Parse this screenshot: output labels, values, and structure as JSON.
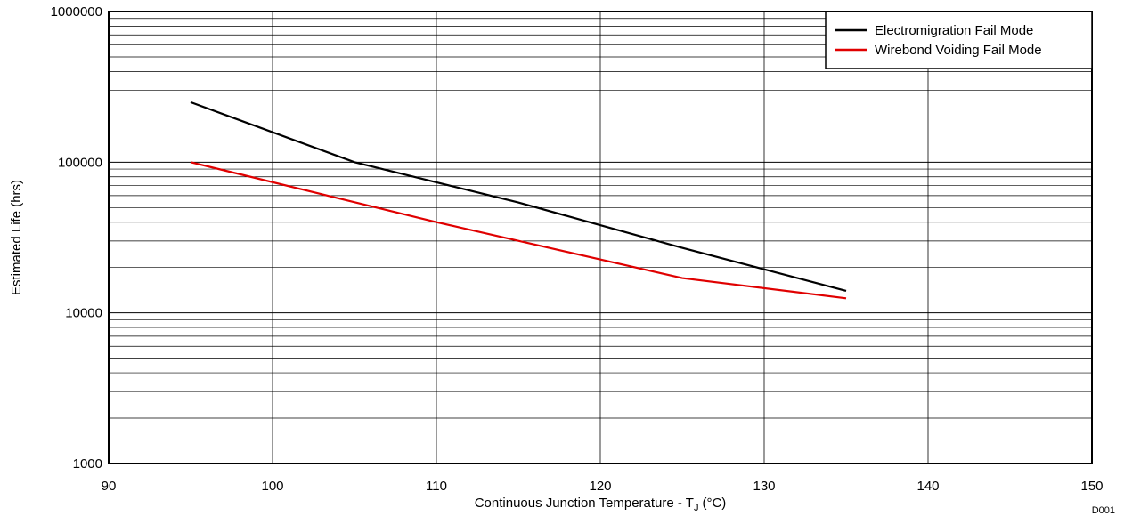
{
  "chart_data": {
    "type": "line",
    "xlabel": "Continuous Junction Temperature - T",
    "xlabel_subscript": "J",
    "xlabel_unit": "(°C)",
    "ylabel": "Estimated Life (hrs)",
    "xlim": [
      90,
      150
    ],
    "ylim": [
      1000,
      1000000
    ],
    "yscale": "log",
    "x_ticks": [
      90,
      100,
      110,
      120,
      130,
      140,
      150
    ],
    "y_ticks": [
      1000,
      10000,
      100000,
      1000000
    ],
    "x_tick_labels": [
      "90",
      "100",
      "110",
      "120",
      "130",
      "140",
      "150"
    ],
    "y_tick_labels": [
      "1000",
      "10000",
      "100000",
      "1000000"
    ],
    "grid": true,
    "legend_position": "top-right",
    "series": [
      {
        "name": "Electromigration Fail Mode",
        "color": "#000000",
        "points": [
          [
            95,
            250000
          ],
          [
            105,
            100000
          ],
          [
            115,
            54000
          ],
          [
            125,
            27000
          ],
          [
            135,
            14000
          ]
        ]
      },
      {
        "name": "Wirebond Voiding Fail Mode",
        "color": "#e00000",
        "points": [
          [
            95,
            100000
          ],
          [
            110,
            40000
          ],
          [
            125,
            17000
          ],
          [
            135,
            12500
          ]
        ]
      }
    ],
    "figure_id": "D001"
  }
}
